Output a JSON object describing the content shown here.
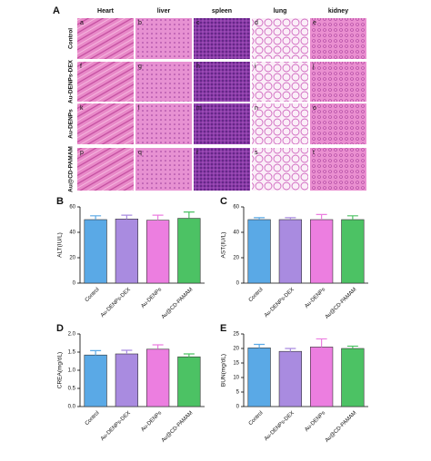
{
  "histology": {
    "panel_label": "A",
    "columns": [
      "Heart",
      "liver",
      "spleen",
      "lung",
      "kidney"
    ],
    "rows": [
      "Control",
      "Au-DENPs-DEX",
      "Au-DENPs",
      "Au@CD-PAMAM"
    ],
    "cell_labels": [
      [
        "a",
        "b",
        "c",
        "d",
        "e"
      ],
      [
        "f",
        "g",
        "h",
        "i",
        "j"
      ],
      [
        "k",
        "l",
        "m",
        "n",
        "o"
      ],
      [
        "p",
        "q",
        "r",
        "s",
        "t"
      ]
    ]
  },
  "chart_data": [
    {
      "type": "bar",
      "panel_label": "B",
      "ylabel": "ALT(IU/L)",
      "categories": [
        "Control",
        "Au-DENPs-DEX",
        "Au-DENPs",
        "Au@CD-PAMAM"
      ],
      "values": [
        50,
        50.5,
        49.5,
        51
      ],
      "errors": [
        3,
        3,
        4,
        5
      ],
      "colors": [
        "#5aa9e6",
        "#a98be0",
        "#ec7ee0",
        "#4cc264"
      ],
      "ylim": [
        0,
        60
      ],
      "yticks": [
        0,
        20,
        40,
        60
      ]
    },
    {
      "type": "bar",
      "panel_label": "C",
      "ylabel": "AST(IU/L)",
      "categories": [
        "Control",
        "Au-DENPs-DEX",
        "Au-DENPs",
        "Au@CD-PAMAM"
      ],
      "values": [
        50,
        50,
        50,
        50
      ],
      "errors": [
        1.5,
        1.5,
        4,
        3
      ],
      "colors": [
        "#5aa9e6",
        "#a98be0",
        "#ec7ee0",
        "#4cc264"
      ],
      "ylim": [
        0,
        60
      ],
      "yticks": [
        0,
        20,
        40,
        60
      ]
    },
    {
      "type": "bar",
      "panel_label": "D",
      "ylabel": "CREA(mg/dL)",
      "categories": [
        "Control",
        "Au-DENPs-DEX",
        "Au-DENPs",
        "Au@CD-PAMAM"
      ],
      "values": [
        1.42,
        1.45,
        1.58,
        1.37
      ],
      "errors": [
        0.12,
        0.1,
        0.12,
        0.08
      ],
      "colors": [
        "#5aa9e6",
        "#a98be0",
        "#ec7ee0",
        "#4cc264"
      ],
      "ylim": [
        0,
        2
      ],
      "yticks": [
        {
          "value": 0,
          "label": "0.0"
        },
        0.5,
        {
          "value": 1,
          "label": "1.0"
        },
        1.5,
        {
          "value": 2,
          "label": "2.0"
        }
      ]
    },
    {
      "type": "bar",
      "panel_label": "E",
      "ylabel": "BUN(mg/dL)",
      "categories": [
        "Control",
        "Au-DENPs-DEX",
        "Au-DENPs",
        "Au@CD-PAMAM"
      ],
      "values": [
        20.2,
        19,
        20.5,
        20
      ],
      "errors": [
        1.2,
        1,
        2.8,
        0.8
      ],
      "colors": [
        "#5aa9e6",
        "#a98be0",
        "#ec7ee0",
        "#4cc264"
      ],
      "ylim": [
        0,
        25
      ],
      "yticks": [
        0,
        5,
        10,
        15,
        20,
        25
      ]
    }
  ]
}
